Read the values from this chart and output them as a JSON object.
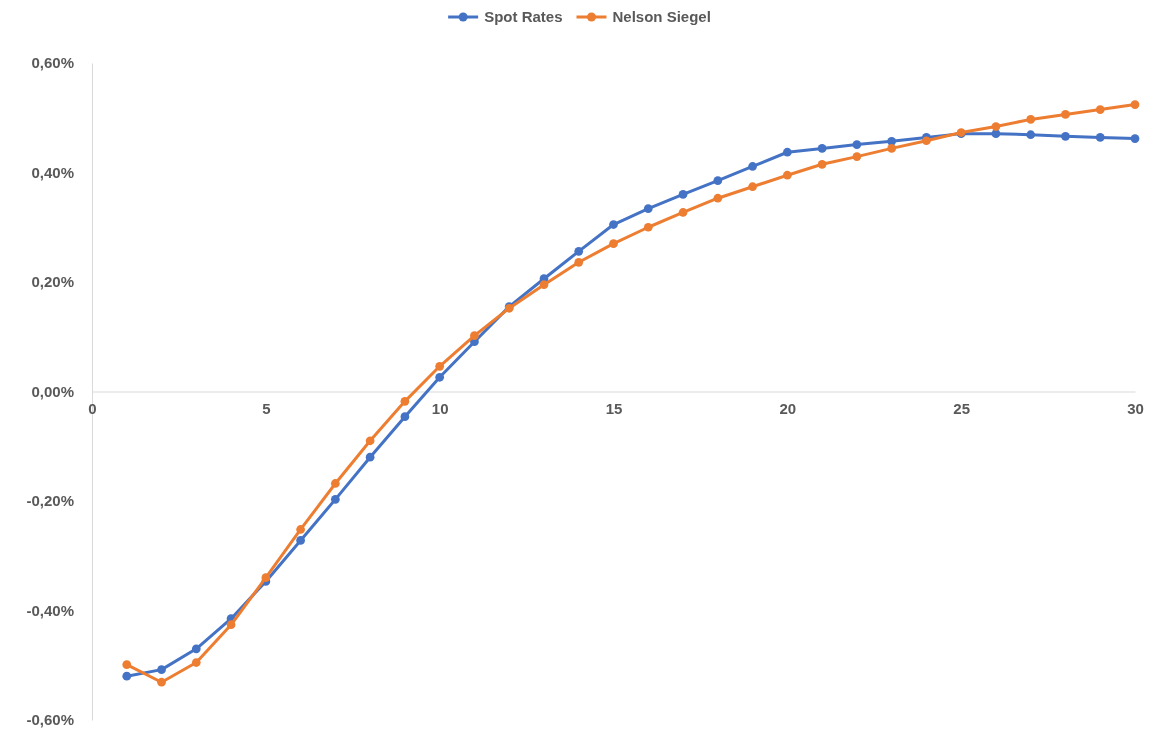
{
  "chart_data": {
    "type": "line",
    "x": [
      1,
      2,
      3,
      4,
      5,
      6,
      7,
      8,
      9,
      10,
      11,
      12,
      13,
      14,
      15,
      16,
      17,
      18,
      19,
      20,
      21,
      22,
      23,
      24,
      25,
      26,
      27,
      28,
      29,
      30
    ],
    "series": [
      {
        "name": "Spot Rates",
        "color": "#4472c4",
        "values": [
          -0.52,
          -0.508,
          -0.47,
          -0.415,
          -0.347,
          -0.272,
          -0.197,
          -0.12,
          -0.046,
          0.026,
          0.091,
          0.155,
          0.206,
          0.256,
          0.305,
          0.334,
          0.36,
          0.385,
          0.411,
          0.437,
          0.444,
          0.451,
          0.457,
          0.464,
          0.471,
          0.471,
          0.469,
          0.466,
          0.464,
          0.462
        ]
      },
      {
        "name": "Nelson Siegel",
        "color": "#ed7d31",
        "values": [
          -0.499,
          -0.531,
          -0.495,
          -0.426,
          -0.34,
          -0.252,
          -0.168,
          -0.09,
          -0.018,
          0.046,
          0.102,
          0.152,
          0.195,
          0.236,
          0.27,
          0.3,
          0.327,
          0.353,
          0.374,
          0.395,
          0.415,
          0.429,
          0.444,
          0.458,
          0.473,
          0.484,
          0.497,
          0.506,
          0.515,
          0.524
        ]
      }
    ],
    "xlim": [
      0,
      30
    ],
    "xticks": [
      0,
      5,
      10,
      15,
      20,
      25,
      30
    ],
    "ylim": [
      -0.6,
      0.6
    ],
    "yticks": [
      {
        "value": -0.6,
        "label": "-0,60%"
      },
      {
        "value": -0.4,
        "label": "-0,40%"
      },
      {
        "value": -0.2,
        "label": "-0,20%"
      },
      {
        "value": 0,
        "label": "0,00%"
      },
      {
        "value": 0.2,
        "label": "0,20%"
      },
      {
        "value": 0.4,
        "label": "0,40%"
      },
      {
        "value": 0.6,
        "label": "0,60%"
      }
    ],
    "grid": false,
    "legend": "top",
    "marker": "circle",
    "line_style": "solid"
  }
}
